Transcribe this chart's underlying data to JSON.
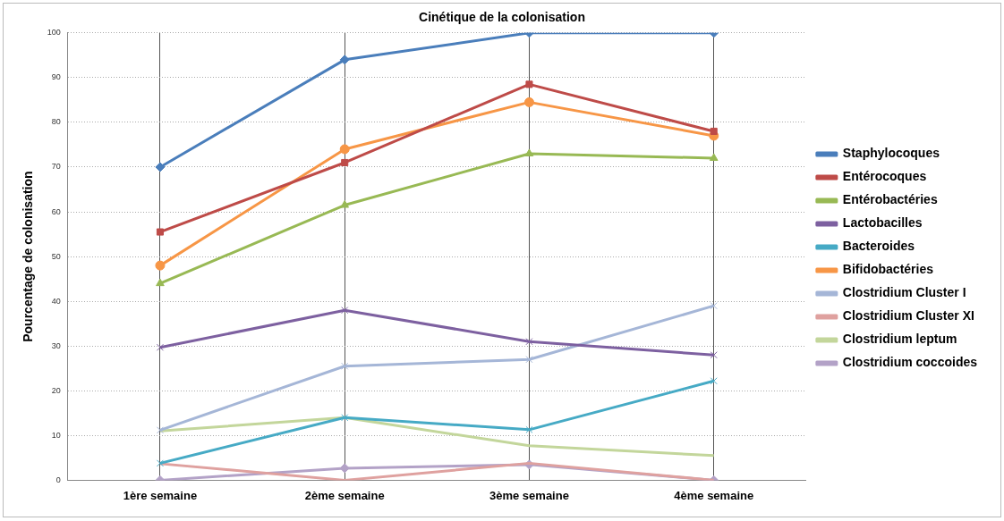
{
  "chart_data": {
    "type": "line",
    "title": "Cinétique de la colonisation",
    "ylabel": "Pourcentage de colonisation",
    "categories": [
      "1ère semaine",
      "2ème semaine",
      "3ème semaine",
      "4ème semaine"
    ],
    "ylim": [
      0,
      100
    ],
    "yticks": [
      0,
      10,
      20,
      30,
      40,
      50,
      60,
      70,
      80,
      90,
      100
    ],
    "grid": true,
    "legend": "right",
    "line_style": "solid",
    "series": [
      {
        "name": "Staphylocoques",
        "color": "#4a7ebb",
        "marker": "diamond",
        "values": [
          70,
          94,
          100,
          100
        ]
      },
      {
        "name": "Entérocoques",
        "color": "#be4b48",
        "marker": "square",
        "values": [
          55.5,
          71,
          88.5,
          78
        ]
      },
      {
        "name": "Entérobactéries",
        "color": "#98b954",
        "marker": "triangle",
        "values": [
          44,
          61.5,
          73,
          72
        ]
      },
      {
        "name": "Lactobacilles",
        "color": "#7d60a0",
        "marker": "cross",
        "values": [
          29.7,
          38,
          31,
          28
        ]
      },
      {
        "name": "Bacteroides",
        "color": "#46aac5",
        "marker": "cross",
        "values": [
          3.8,
          14,
          11.3,
          22.2
        ]
      },
      {
        "name": "Bifidobactéries",
        "color": "#f79646",
        "marker": "circle",
        "values": [
          48,
          74,
          84.5,
          77
        ]
      },
      {
        "name": "Clostridium Cluster I",
        "color": "#a5b6d7",
        "marker": "cross",
        "values": [
          11.2,
          25.5,
          27,
          39
        ]
      },
      {
        "name": "Clostridium Cluster XI",
        "color": "#dfa19f",
        "marker": "none",
        "values": [
          3.7,
          0,
          3.8,
          0
        ]
      },
      {
        "name": "Clostridium leptum",
        "color": "#c3d69b",
        "marker": "none",
        "values": [
          11,
          14,
          7.7,
          5.5
        ]
      },
      {
        "name": "Clostridium coccoides",
        "color": "#b3a2c7",
        "marker": "diamond",
        "values": [
          0,
          2.7,
          3.5,
          0
        ]
      }
    ]
  }
}
